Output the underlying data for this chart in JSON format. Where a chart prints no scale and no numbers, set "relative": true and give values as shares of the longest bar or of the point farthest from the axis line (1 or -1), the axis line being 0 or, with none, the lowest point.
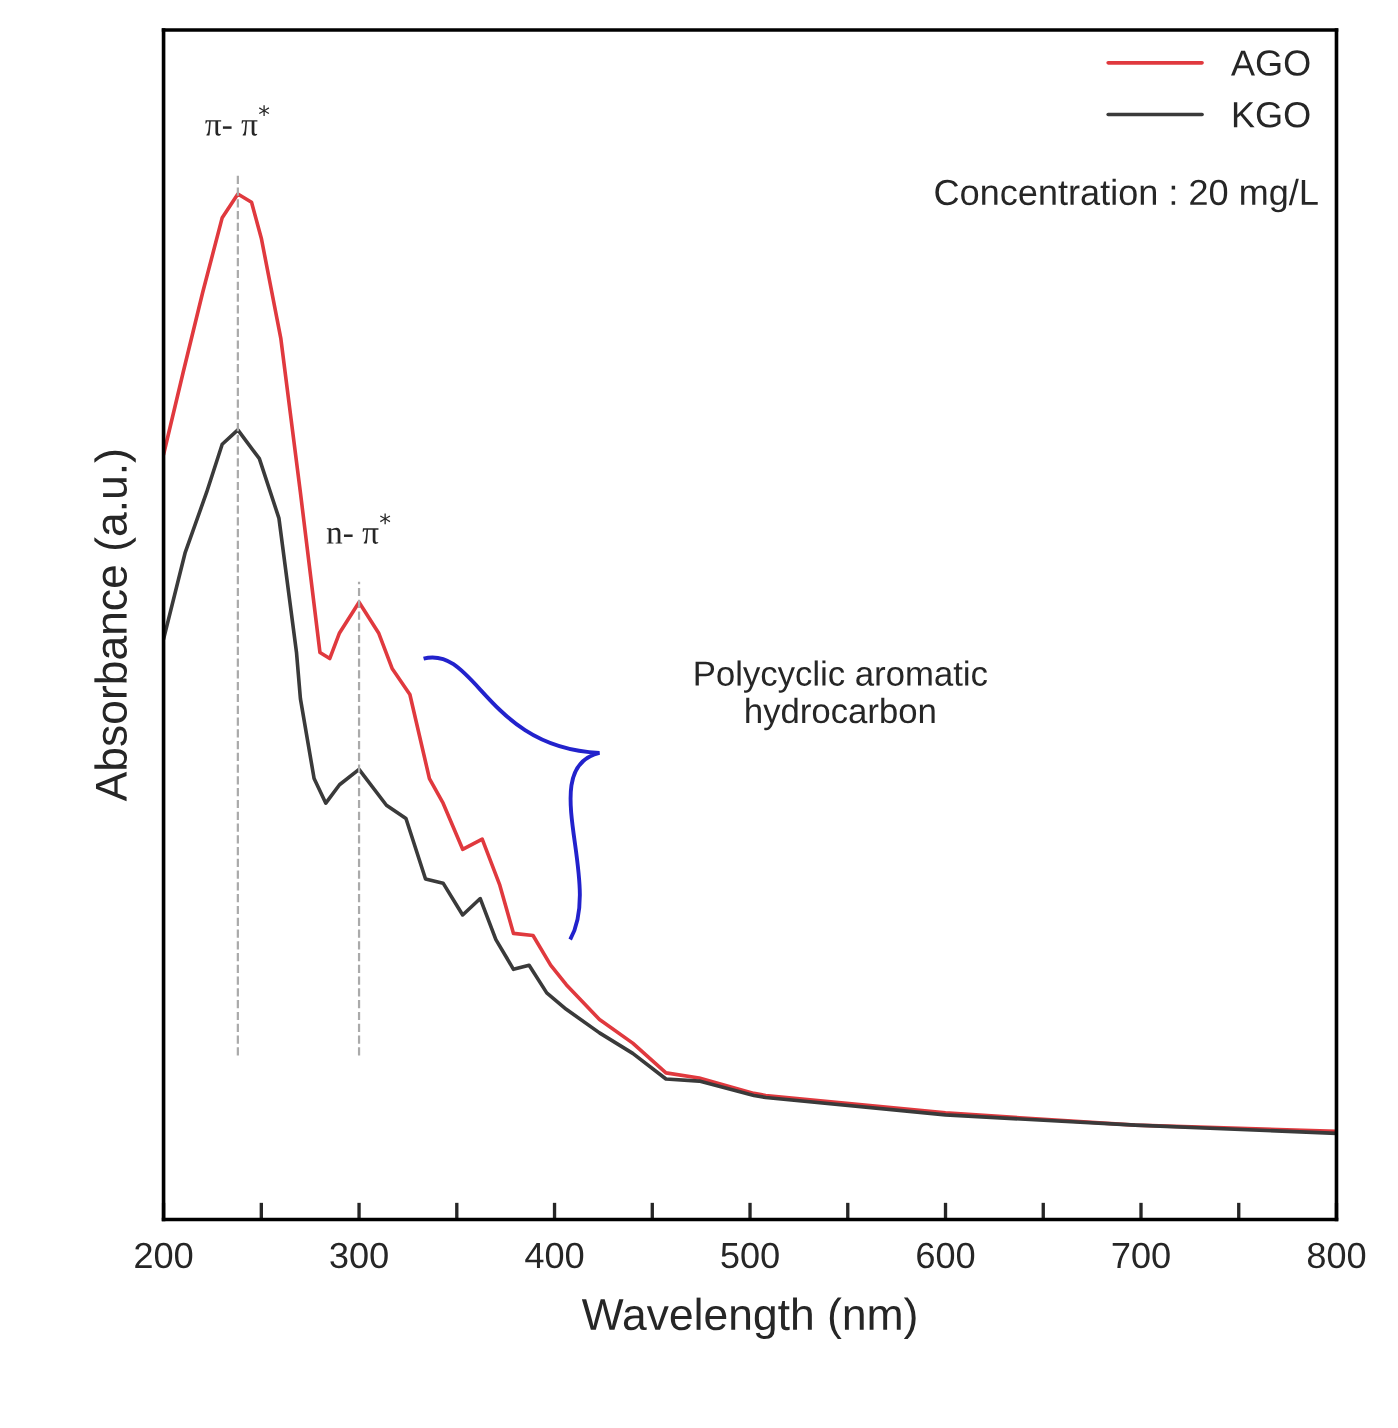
{
  "chart_data": {
    "type": "line",
    "relative": true,
    "xlabel": "Wavelength (nm)",
    "ylabel": "Absorbance (a.u.)",
    "xlim": [
      200,
      800
    ],
    "xticks": [
      200,
      {
        "value": 250,
        "label": null
      },
      300,
      {
        "value": 350,
        "label": null
      },
      400,
      {
        "value": 450,
        "label": null
      },
      500,
      {
        "value": 550,
        "label": null
      },
      600,
      {
        "value": 650,
        "label": null
      },
      700,
      {
        "value": 750,
        "label": null
      },
      800
    ],
    "legend": "top right",
    "grid": false,
    "series": [
      {
        "name": "AGO",
        "color": "#e0393e",
        "x": [
          200,
          210,
          220,
          230,
          238,
          245,
          250,
          260,
          270,
          280,
          285,
          290,
          300,
          310,
          317,
          326,
          336,
          343,
          353,
          363,
          372,
          379,
          389,
          398,
          406,
          423,
          440,
          457,
          474,
          502,
          508,
          600,
          697,
          800
        ],
        "values": [
          0.746,
          0.826,
          0.904,
          0.977,
          1.0,
          0.992,
          0.957,
          0.859,
          0.709,
          0.553,
          0.547,
          0.572,
          0.602,
          0.572,
          0.537,
          0.512,
          0.43,
          0.406,
          0.361,
          0.371,
          0.326,
          0.279,
          0.277,
          0.248,
          0.229,
          0.195,
          0.172,
          0.143,
          0.138,
          0.123,
          0.121,
          0.104,
          0.092,
          0.086
        ]
      },
      {
        "name": "KGO",
        "color": "#3a3a3a",
        "x": [
          200,
          211,
          222,
          230,
          238,
          249,
          259,
          268,
          270,
          277,
          283,
          290,
          300,
          314,
          324,
          334,
          343,
          353,
          362,
          370,
          379,
          387,
          396,
          406,
          423,
          440,
          457,
          474,
          502,
          508,
          600,
          697,
          800
        ],
        "values": [
          0.566,
          0.65,
          0.709,
          0.756,
          0.77,
          0.742,
          0.684,
          0.553,
          0.508,
          0.43,
          0.406,
          0.424,
          0.439,
          0.404,
          0.391,
          0.332,
          0.328,
          0.297,
          0.313,
          0.273,
          0.244,
          0.248,
          0.221,
          0.205,
          0.182,
          0.162,
          0.137,
          0.135,
          0.121,
          0.119,
          0.102,
          0.092,
          0.084
        ]
      }
    ],
    "ref_lines": [
      {
        "axis": "x",
        "value": 238,
        "label": "π- π$^{*}$",
        "color": "#aaaaaa",
        "line_style": "dashed"
      },
      {
        "axis": "x",
        "value": 300,
        "label": "n- π$^{*}$",
        "color": "#aaaaaa",
        "line_style": "dashed"
      }
    ],
    "annotations": [
      "Concentration : 20 mg/L",
      "Polycyclic aromatic\nhydrocarbon"
    ]
  }
}
